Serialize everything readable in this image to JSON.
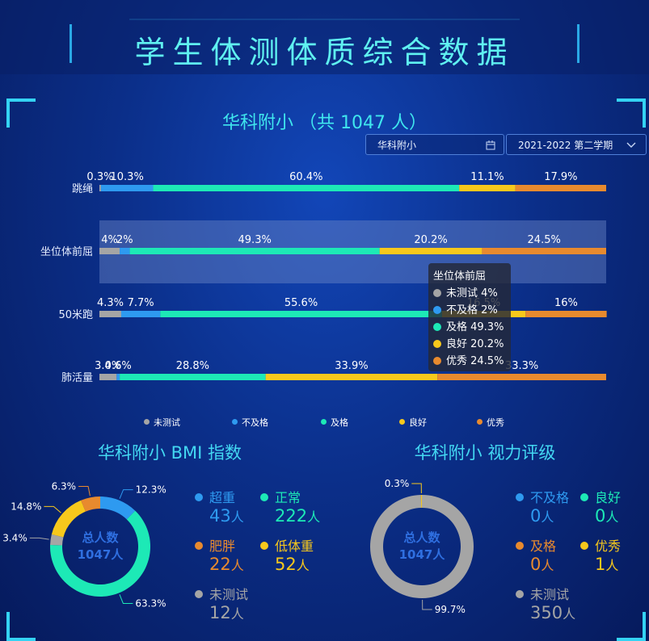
{
  "header": {
    "title": "学生体测体质综合数据"
  },
  "school": {
    "title": "华科附小 （共 1047 人）"
  },
  "controls": {
    "school_select": "华科附小",
    "term_select": "2021-2022 第二学期"
  },
  "colors": {
    "untested": "#a5a5a5",
    "fail": "#2e9af0",
    "pass": "#1de9b6",
    "good": "#f7c81c",
    "excellent": "#e88a2e",
    "accent": "#3fe6ee"
  },
  "chart_data": [
    {
      "type": "bar",
      "orientation": "horizontal-stacked-percent",
      "categories": [
        "跳绳",
        "坐位体前屈",
        "50米跑",
        "肺活量"
      ],
      "series": [
        {
          "name": "未测试",
          "values": [
            0.3,
            4,
            4.3,
            3.4
          ],
          "labels": [
            "0.3%",
            "4%",
            "4.3%",
            "3.4%"
          ]
        },
        {
          "name": "不及格",
          "values": [
            10.3,
            2,
            7.7,
            0.6
          ],
          "labels": [
            "10.3%",
            "2%",
            "7.7%",
            "0.6%"
          ]
        },
        {
          "name": "及格",
          "values": [
            60.4,
            49.3,
            55.6,
            28.8
          ],
          "labels": [
            "60.4%",
            "49.3%",
            "55.6%",
            "28.8%"
          ]
        },
        {
          "name": "良好",
          "values": [
            11.1,
            20.2,
            16.5,
            33.9
          ],
          "labels": [
            "11.1%",
            "20.2%",
            "16.5%",
            "33.9%"
          ]
        },
        {
          "name": "优秀",
          "values": [
            17.9,
            24.5,
            16,
            33.3
          ],
          "labels": [
            "17.9%",
            "24.5%",
            "16%",
            "33.3%"
          ]
        }
      ],
      "legend": [
        "未测试",
        "不及格",
        "及格",
        "良好",
        "优秀"
      ],
      "legend_position": "bottom",
      "highlighted_category": "坐位体前屈",
      "tooltip": {
        "title": "坐位体前屈",
        "rows": [
          "未测试 4%",
          "不及格 2%",
          "及格 49.3%",
          "良好 20.2%",
          "优秀 24.5%"
        ]
      }
    },
    {
      "type": "pie",
      "variant": "donut",
      "title": "华科附小 BMI 指数",
      "center_label": "总人数",
      "center_value": "1047人",
      "slices": [
        {
          "name": "超重",
          "value": 12.3,
          "label": "12.3%",
          "count": "43",
          "color": "#2e9af0"
        },
        {
          "name": "正常",
          "value": 63.3,
          "label": "63.3%",
          "count": "222",
          "color": "#1de9b6"
        },
        {
          "name": "未测试",
          "value": 3.4,
          "label": "3.4%",
          "count": "12",
          "color": "#a5a5a5"
        },
        {
          "name": "低体重",
          "value": 14.8,
          "label": "14.8%",
          "count": "52",
          "color": "#f7c81c"
        },
        {
          "name": "肥胖",
          "value": 6.3,
          "label": "6.3%",
          "count": "22",
          "color": "#e88a2e"
        }
      ]
    },
    {
      "type": "pie",
      "variant": "donut",
      "title": "华科附小 视力评级",
      "center_label": "总人数",
      "center_value": "1047人",
      "slices": [
        {
          "name": "未测试",
          "value": 99.7,
          "label": "99.7%",
          "count": "350",
          "color": "#a5a5a5"
        },
        {
          "name": "不及格",
          "value": 0,
          "label": "",
          "count": "0",
          "color": "#2e9af0"
        },
        {
          "name": "良好",
          "value": 0,
          "label": "",
          "count": "0",
          "color": "#1de9b6"
        },
        {
          "name": "及格",
          "value": 0,
          "label": "",
          "count": "0",
          "color": "#e88a2e"
        },
        {
          "name": "优秀",
          "value": 0.3,
          "label": "0.3%",
          "count": "1",
          "color": "#f7c81c"
        }
      ]
    }
  ],
  "bmi_stats": [
    {
      "label": "超重",
      "count": "43",
      "color": "#2e9af0"
    },
    {
      "label": "正常",
      "count": "222",
      "color": "#1de9b6"
    },
    {
      "label": "肥胖",
      "count": "22",
      "color": "#e88a2e"
    },
    {
      "label": "低体重",
      "count": "52",
      "color": "#f7c81c"
    },
    {
      "label": "未测试",
      "count": "12",
      "color": "#a5a5a5"
    }
  ],
  "vision_stats": [
    {
      "label": "不及格",
      "count": "0",
      "color": "#2e9af0"
    },
    {
      "label": "良好",
      "count": "0",
      "color": "#1de9b6"
    },
    {
      "label": "及格",
      "count": "0",
      "color": "#e88a2e"
    },
    {
      "label": "优秀",
      "count": "1",
      "color": "#f7c81c"
    },
    {
      "label": "未测试",
      "count": "350",
      "color": "#a5a5a5"
    }
  ],
  "unit": "人"
}
